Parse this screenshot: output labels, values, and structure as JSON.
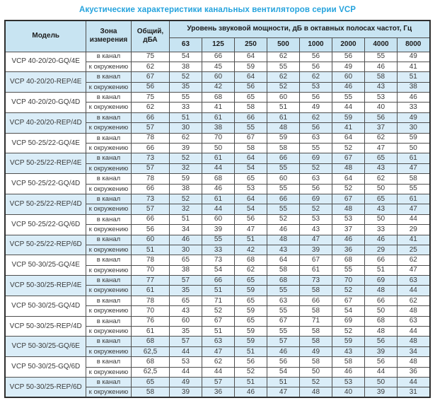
{
  "title": "Акустические характеристики канальных вентиляторов  серии VCP",
  "table": {
    "headers": {
      "model": "Модель",
      "zone": "Зона измерения",
      "total": "Общий, дБА",
      "spl": "Уровень звуковой мощности, дБ в октавных полосах частот, Гц",
      "frequencies": [
        "63",
        "125",
        "250",
        "500",
        "1000",
        "2000",
        "4000",
        "8000"
      ]
    },
    "groups": [
      {
        "model": "VCP 40-20/20-GQ/4E",
        "shaded": false,
        "rows": [
          {
            "zone": "в канал",
            "total": "75",
            "values": [
              "54",
              "66",
              "64",
              "62",
              "56",
              "56",
              "55",
              "49"
            ]
          },
          {
            "zone": "к окружению",
            "total": "62",
            "values": [
              "38",
              "45",
              "59",
              "55",
              "56",
              "49",
              "46",
              "41"
            ]
          }
        ]
      },
      {
        "model": "VCP 40-20/20-REP/4E",
        "shaded": true,
        "rows": [
          {
            "zone": "в канал",
            "total": "67",
            "values": [
              "52",
              "60",
              "64",
              "62",
              "62",
              "60",
              "58",
              "51"
            ]
          },
          {
            "zone": "к окружению",
            "total": "56",
            "values": [
              "35",
              "42",
              "56",
              "52",
              "53",
              "46",
              "43",
              "38"
            ]
          }
        ]
      },
      {
        "model": "VCP 40-20/20-GQ/4D",
        "shaded": false,
        "rows": [
          {
            "zone": "в канал",
            "total": "75",
            "values": [
              "55",
              "68",
              "65",
              "60",
              "56",
              "55",
              "53",
              "46"
            ]
          },
          {
            "zone": "к окружению",
            "total": "62",
            "values": [
              "33",
              "41",
              "58",
              "51",
              "49",
              "44",
              "40",
              "33"
            ]
          }
        ]
      },
      {
        "model": "VCP 40-20/20-REP/4D",
        "shaded": true,
        "rows": [
          {
            "zone": "в канал",
            "total": "66",
            "values": [
              "51",
              "61",
              "66",
              "61",
              "62",
              "59",
              "56",
              "49"
            ]
          },
          {
            "zone": "к окружению",
            "total": "57",
            "values": [
              "30",
              "38",
              "55",
              "48",
              "56",
              "41",
              "37",
              "30"
            ]
          }
        ]
      },
      {
        "model": "VCP 50-25/22-GQ/4E",
        "shaded": false,
        "rows": [
          {
            "zone": "в канал",
            "total": "78",
            "values": [
              "62",
              "70",
              "67",
              "59",
              "63",
              "64",
              "62",
              "59"
            ]
          },
          {
            "zone": "к окружению",
            "total": "66",
            "values": [
              "39",
              "50",
              "58",
              "58",
              "55",
              "52",
              "47",
              "50"
            ]
          }
        ]
      },
      {
        "model": "VCP 50-25/22-REP/4E",
        "shaded": true,
        "rows": [
          {
            "zone": "в канал",
            "total": "73",
            "values": [
              "52",
              "61",
              "64",
              "66",
              "69",
              "67",
              "65",
              "61"
            ]
          },
          {
            "zone": "к окружению",
            "total": "57",
            "values": [
              "32",
              "44",
              "54",
              "55",
              "52",
              "48",
              "43",
              "47"
            ]
          }
        ]
      },
      {
        "model": "VCP 50-25/22-GQ/4D",
        "shaded": false,
        "rows": [
          {
            "zone": "в канал",
            "total": "78",
            "values": [
              "59",
              "68",
              "65",
              "60",
              "63",
              "64",
              "62",
              "58"
            ]
          },
          {
            "zone": "к окружению",
            "total": "66",
            "values": [
              "38",
              "46",
              "53",
              "55",
              "56",
              "52",
              "50",
              "55"
            ]
          }
        ]
      },
      {
        "model": "VCP 50-25/22-REP/4D",
        "shaded": true,
        "rows": [
          {
            "zone": "в канал",
            "total": "73",
            "values": [
              "52",
              "61",
              "64",
              "66",
              "69",
              "67",
              "65",
              "61"
            ]
          },
          {
            "zone": "к окружению",
            "total": "57",
            "values": [
              "32",
              "44",
              "54",
              "55",
              "52",
              "48",
              "43",
              "47"
            ]
          }
        ]
      },
      {
        "model": "VCP 50-25/22-GQ/6D",
        "shaded": false,
        "rows": [
          {
            "zone": "в канал",
            "total": "66",
            "values": [
              "51",
              "60",
              "56",
              "52",
              "53",
              "53",
              "50",
              "44"
            ]
          },
          {
            "zone": "к окружению",
            "total": "56",
            "values": [
              "34",
              "39",
              "47",
              "46",
              "43",
              "37",
              "33",
              "29"
            ]
          }
        ]
      },
      {
        "model": "VCP 50-25/22-REP/6D",
        "shaded": true,
        "rows": [
          {
            "zone": "в канал",
            "total": "60",
            "values": [
              "46",
              "55",
              "51",
              "48",
              "47",
              "46",
              "46",
              "41"
            ]
          },
          {
            "zone": "к окружению",
            "total": "51",
            "values": [
              "30",
              "33",
              "42",
              "43",
              "39",
              "36",
              "29",
              "25"
            ]
          }
        ]
      },
      {
        "model": "VCP 50-30/25-GQ/4E",
        "shaded": false,
        "rows": [
          {
            "zone": "в канал",
            "total": "78",
            "values": [
              "65",
              "73",
              "68",
              "64",
              "67",
              "68",
              "66",
              "62"
            ]
          },
          {
            "zone": "к окружению",
            "total": "70",
            "values": [
              "38",
              "54",
              "62",
              "58",
              "61",
              "55",
              "51",
              "47"
            ]
          }
        ]
      },
      {
        "model": "VCP 50-30/25-REP/4E",
        "shaded": true,
        "rows": [
          {
            "zone": "в канал",
            "total": "77",
            "values": [
              "57",
              "66",
              "65",
              "68",
              "73",
              "70",
              "69",
              "63"
            ]
          },
          {
            "zone": "к окружению",
            "total": "61",
            "values": [
              "35",
              "51",
              "59",
              "55",
              "58",
              "52",
              "48",
              "44"
            ]
          }
        ]
      },
      {
        "model": "VCP 50-30/25-GQ/4D",
        "shaded": false,
        "rows": [
          {
            "zone": "в канал",
            "total": "78",
            "values": [
              "65",
              "71",
              "65",
              "63",
              "66",
              "67",
              "66",
              "62"
            ]
          },
          {
            "zone": "к окружению",
            "total": "70",
            "values": [
              "43",
              "52",
              "59",
              "55",
              "58",
              "54",
              "50",
              "48"
            ]
          }
        ]
      },
      {
        "model": "VCP 50-30/25-REP/4D",
        "shaded": false,
        "rows": [
          {
            "zone": "в канал",
            "total": "76",
            "values": [
              "60",
              "67",
              "65",
              "67",
              "71",
              "69",
              "68",
              "63"
            ]
          },
          {
            "zone": "к окружению",
            "total": "61",
            "values": [
              "35",
              "51",
              "59",
              "55",
              "58",
              "52",
              "48",
              "44"
            ]
          }
        ]
      },
      {
        "model": "VCP 50-30/25-GQ/6E",
        "shaded": true,
        "rows": [
          {
            "zone": "в канал",
            "total": "68",
            "values": [
              "57",
              "63",
              "59",
              "57",
              "58",
              "59",
              "56",
              "48"
            ]
          },
          {
            "zone": "к окружению",
            "total": "62,5",
            "values": [
              "44",
              "47",
              "51",
              "46",
              "49",
              "43",
              "39",
              "34"
            ]
          }
        ]
      },
      {
        "model": "VCP 50-30/25-GQ/6D",
        "shaded": false,
        "rows": [
          {
            "zone": "в канал",
            "total": "68",
            "values": [
              "53",
              "62",
              "56",
              "56",
              "58",
              "58",
              "56",
              "48"
            ]
          },
          {
            "zone": "к окружению",
            "total": "62,5",
            "values": [
              "44",
              "44",
              "52",
              "54",
              "50",
              "46",
              "44",
              "36"
            ]
          }
        ]
      },
      {
        "model": "VCP 50-30/25-REP/6D",
        "shaded": true,
        "rows": [
          {
            "zone": "в канал",
            "total": "65",
            "values": [
              "49",
              "57",
              "51",
              "51",
              "52",
              "53",
              "50",
              "44"
            ]
          },
          {
            "zone": "к окружению",
            "total": "58",
            "values": [
              "39",
              "36",
              "46",
              "47",
              "48",
              "40",
              "39",
              "31"
            ]
          }
        ]
      }
    ]
  },
  "colors": {
    "title": "#25a3dd",
    "header_bg": "#c8e4f2",
    "band_bg": "#daedf8",
    "border": "#4f4f4f",
    "text": "#3a3a3a"
  }
}
